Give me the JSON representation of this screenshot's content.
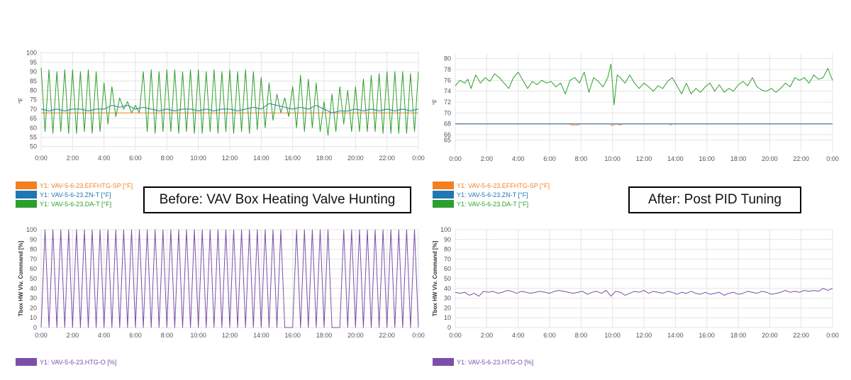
{
  "callouts": {
    "before": "Before: VAV Box Heating Valve Hunting",
    "after": "After: Post PID Tuning"
  },
  "colors": {
    "setpoint": "#f47f20",
    "zone_temp": "#1f77b4",
    "discharge_temp": "#2ca02c",
    "valve": "#7b4fa8"
  },
  "legends": {
    "temp": [
      {
        "label": "Y1: VAV-5-6-23.EFFHTG-SP [°F]",
        "color": "#f47f20"
      },
      {
        "label": "Y1: VAV-5-6-23.ZN-T [°F]",
        "color": "#1f77b4"
      },
      {
        "label": "Y1: VAV-5-6-23.DA-T [°F]",
        "color": "#2ca02c"
      }
    ],
    "valve": [
      {
        "label": "Y1: VAV-5-6-23.HTG-O [%]",
        "color": "#7b4fa8"
      }
    ]
  },
  "chart_data": [
    {
      "type": "line",
      "ylabel": "°F",
      "ylim": [
        48,
        101
      ],
      "yticks": [
        50,
        55,
        60,
        65,
        70,
        75,
        80,
        85,
        90,
        95,
        100
      ],
      "xticks": [
        "0:00",
        "2:00",
        "4:00",
        "6:00",
        "8:00",
        "10:00",
        "12:00",
        "14:00",
        "16:00",
        "18:00",
        "20:00",
        "22:00",
        "0:00"
      ],
      "grid": true,
      "series": [
        {
          "name": "Y1: VAV-5-6-23.EFFHTG-SP [°F]",
          "color": "#f47f20",
          "x": [
            0,
            24
          ],
          "y": [
            68,
            68
          ]
        },
        {
          "name": "Y1: VAV-5-6-23.ZN-T [°F]",
          "color": "#1f77b4",
          "x": [
            0,
            0.5,
            1,
            1.5,
            2,
            2.5,
            3,
            3.5,
            4,
            4.5,
            5,
            5.5,
            6,
            6.5,
            7,
            7.5,
            8,
            8.5,
            9,
            9.5,
            10,
            10.5,
            11,
            11.5,
            12,
            12.5,
            13,
            13.5,
            14,
            14.5,
            15,
            15.5,
            16,
            16.5,
            17,
            17.5,
            18,
            18.5,
            19,
            19.5,
            20,
            20.5,
            21,
            21.5,
            22,
            22.5,
            23,
            23.5,
            24
          ],
          "y": [
            70,
            69,
            70,
            69,
            70,
            70,
            69,
            70,
            70,
            72,
            71,
            72,
            70,
            71,
            70,
            69,
            70,
            69,
            70,
            70,
            69,
            70,
            69,
            70,
            70,
            69,
            70,
            71,
            70,
            73,
            72,
            71,
            70,
            71,
            70,
            72,
            70,
            68,
            69,
            69,
            70,
            69,
            70,
            69,
            70,
            69,
            70,
            69,
            70
          ]
        },
        {
          "name": "Y1: VAV-5-6-23.DA-T [°F]",
          "color": "#2ca02c",
          "x": [
            0,
            0.25,
            0.5,
            0.75,
            1,
            1.25,
            1.5,
            1.75,
            2,
            2.25,
            2.5,
            2.75,
            3,
            3.25,
            3.5,
            3.75,
            4,
            4.25,
            4.5,
            4.75,
            5,
            5.25,
            5.5,
            5.75,
            6,
            6.25,
            6.5,
            6.75,
            7,
            7.25,
            7.5,
            7.75,
            8,
            8.25,
            8.5,
            8.75,
            9,
            9.25,
            9.5,
            9.75,
            10,
            10.25,
            10.5,
            10.75,
            11,
            11.25,
            11.5,
            11.75,
            12,
            12.25,
            12.5,
            12.75,
            13,
            13.25,
            13.5,
            13.75,
            14,
            14.25,
            14.5,
            14.75,
            15,
            15.25,
            15.5,
            15.75,
            16,
            16.25,
            16.5,
            16.75,
            17,
            17.25,
            17.5,
            17.75,
            18,
            18.25,
            18.5,
            18.75,
            19,
            19.25,
            19.5,
            19.75,
            20,
            20.25,
            20.5,
            20.75,
            21,
            21.25,
            21.5,
            21.75,
            22,
            22.25,
            22.5,
            22.75,
            23,
            23.25,
            23.5,
            23.75,
            24
          ],
          "y": [
            92,
            58,
            91,
            57,
            90,
            58,
            91,
            57,
            91,
            57,
            90,
            58,
            91,
            57,
            90,
            58,
            84,
            62,
            82,
            66,
            76,
            70,
            74,
            68,
            72,
            68,
            90,
            58,
            91,
            57,
            90,
            58,
            91,
            58,
            91,
            57,
            90,
            58,
            91,
            57,
            91,
            57,
            90,
            58,
            91,
            57,
            90,
            58,
            91,
            57,
            90,
            58,
            91,
            57,
            90,
            59,
            87,
            60,
            84,
            64,
            78,
            68,
            76,
            66,
            82,
            60,
            88,
            58,
            86,
            60,
            84,
            58,
            74,
            56,
            78,
            58,
            82,
            62,
            80,
            58,
            82,
            58,
            86,
            58,
            88,
            58,
            89,
            57,
            90,
            57,
            90,
            57,
            90,
            57,
            89,
            58,
            90
          ]
        }
      ]
    },
    {
      "type": "line",
      "ylabel": "°F",
      "ylim": [
        63,
        81
      ],
      "yticks": [
        65,
        66,
        68,
        70,
        72,
        74,
        76,
        78,
        80
      ],
      "xticks": [
        "0:00",
        "2:00",
        "4:00",
        "6:00",
        "8:00",
        "10:00",
        "12:00",
        "14:00",
        "16:00",
        "18:00",
        "20:00",
        "22:00",
        "0:00"
      ],
      "grid": true,
      "series": [
        {
          "name": "Y1: VAV-5-6-23.EFFHTG-SP [°F]",
          "color": "#f47f20",
          "x": [
            0,
            7.2,
            7.4,
            7.8,
            8,
            9.8,
            10,
            10.2,
            10.5,
            10.7,
            13.6,
            13.7,
            13.8,
            24
          ],
          "y": [
            68,
            68,
            67.8,
            67.8,
            68,
            68,
            67.7,
            68,
            67.8,
            68,
            68,
            67.8,
            68,
            68
          ]
        },
        {
          "name": "Y1: VAV-5-6-23.ZN-T [°F]",
          "color": "#1f77b4",
          "x": [
            0,
            24
          ],
          "y": [
            68,
            68
          ]
        },
        {
          "name": "Y1: VAV-5-6-23.DA-T [°F]",
          "color": "#2ca02c",
          "x": [
            0,
            0.3,
            0.6,
            0.8,
            1,
            1.3,
            1.6,
            1.9,
            2.2,
            2.5,
            2.8,
            3.1,
            3.4,
            3.7,
            4,
            4.3,
            4.6,
            4.9,
            5.2,
            5.5,
            5.8,
            6.1,
            6.4,
            6.7,
            7,
            7.3,
            7.6,
            7.9,
            8.2,
            8.5,
            8.8,
            9.1,
            9.4,
            9.7,
            9.9,
            10.1,
            10.3,
            10.5,
            10.8,
            11.1,
            11.4,
            11.7,
            12,
            12.3,
            12.6,
            12.9,
            13.2,
            13.5,
            13.8,
            14.1,
            14.4,
            14.7,
            15,
            15.3,
            15.6,
            15.9,
            16.2,
            16.5,
            16.8,
            17.1,
            17.4,
            17.7,
            18,
            18.3,
            18.6,
            18.9,
            19.2,
            19.5,
            19.8,
            20.1,
            20.4,
            20.7,
            21,
            21.3,
            21.6,
            21.9,
            22.2,
            22.5,
            22.8,
            23.1,
            23.4,
            23.7,
            24
          ],
          "y": [
            75,
            76,
            75.5,
            76.2,
            74.5,
            77,
            75.5,
            76.5,
            75.8,
            77.2,
            76.5,
            75.5,
            74.5,
            76.5,
            77.5,
            76,
            74.5,
            75.8,
            75.2,
            76,
            75.5,
            75.8,
            74.8,
            75.5,
            73.5,
            76,
            76.5,
            75.5,
            77.5,
            73.8,
            76.5,
            75.8,
            74.8,
            76.5,
            79,
            71.5,
            77,
            76.5,
            75.5,
            77,
            75.5,
            74.5,
            75.5,
            74.8,
            74,
            75,
            74.5,
            75.8,
            76.5,
            75,
            73.5,
            75.5,
            73.5,
            74.5,
            73.8,
            74.8,
            75.5,
            74,
            75.2,
            73.8,
            74.5,
            74,
            75.2,
            75.8,
            75,
            76.5,
            74.8,
            74.2,
            74,
            74.5,
            73.8,
            74.5,
            75.5,
            74.8,
            76.5,
            76,
            76.5,
            75.5,
            77,
            76.2,
            76.5,
            78.2,
            76
          ]
        }
      ]
    },
    {
      "type": "line",
      "ylabel": "Tbox HW Vlv. Command [%]",
      "ylim": [
        0,
        100
      ],
      "yticks": [
        0,
        10,
        20,
        30,
        40,
        50,
        60,
        70,
        80,
        90,
        100
      ],
      "xticks": [
        "0:00",
        "2:00",
        "4:00",
        "6:00",
        "8:00",
        "10:00",
        "12:00",
        "14:00",
        "16:00",
        "18:00",
        "20:00",
        "22:00",
        "0:00"
      ],
      "grid": true,
      "series": [
        {
          "name": "Y1: VAV-5-6-23.HTG-O [%]",
          "color": "#7b4fa8",
          "pattern": "oscillating 0–100% roughly every 0.5 h, with flat 0% periods near 15:30–16:00 and 18:30–19:00",
          "x": [
            0,
            24
          ],
          "y": [
            0,
            100
          ]
        }
      ]
    },
    {
      "type": "line",
      "ylabel": "Tbox HW Vlv. Command [%]",
      "ylim": [
        0,
        100
      ],
      "yticks": [
        0,
        10,
        20,
        30,
        40,
        50,
        60,
        70,
        80,
        90,
        100
      ],
      "xticks": [
        "0:00",
        "2:00",
        "4:00",
        "6:00",
        "8:00",
        "10:00",
        "12:00",
        "14:00",
        "16:00",
        "18:00",
        "20:00",
        "22:00",
        "0:00"
      ],
      "grid": true,
      "series": [
        {
          "name": "Y1: VAV-5-6-23.HTG-O [%]",
          "color": "#7b4fa8",
          "x": [
            0,
            0.3,
            0.6,
            0.9,
            1.2,
            1.5,
            1.8,
            2.1,
            2.4,
            2.7,
            3,
            3.3,
            3.6,
            3.9,
            4.2,
            4.5,
            4.8,
            5.1,
            5.4,
            5.7,
            6,
            6.3,
            6.6,
            6.9,
            7.2,
            7.5,
            7.8,
            8.1,
            8.4,
            8.7,
            9,
            9.3,
            9.6,
            9.9,
            10.2,
            10.5,
            10.8,
            11.1,
            11.4,
            11.7,
            12,
            12.3,
            12.6,
            12.9,
            13.2,
            13.5,
            13.8,
            14.1,
            14.4,
            14.7,
            15,
            15.3,
            15.6,
            15.9,
            16.2,
            16.5,
            16.8,
            17.1,
            17.4,
            17.7,
            18,
            18.3,
            18.6,
            18.9,
            19.2,
            19.5,
            19.8,
            20.1,
            20.4,
            20.7,
            21,
            21.3,
            21.6,
            21.9,
            22.2,
            22.5,
            22.8,
            23.1,
            23.4,
            23.7,
            24
          ],
          "y": [
            36,
            35,
            36,
            33,
            35,
            32,
            37,
            36,
            37,
            35,
            36,
            38,
            37,
            35,
            37,
            36,
            35,
            36,
            37,
            36,
            35,
            37,
            38,
            37,
            36,
            35,
            36,
            37,
            34,
            36,
            37,
            35,
            38,
            32,
            37,
            36,
            33,
            35,
            37,
            36,
            38,
            35,
            37,
            36,
            35,
            37,
            36,
            34,
            36,
            35,
            37,
            35,
            34,
            36,
            34,
            35,
            36,
            33,
            35,
            36,
            34,
            35,
            37,
            36,
            35,
            37,
            36,
            34,
            35,
            36,
            38,
            36,
            37,
            36,
            38,
            37,
            38,
            37,
            40,
            38,
            40
          ]
        }
      ]
    }
  ]
}
